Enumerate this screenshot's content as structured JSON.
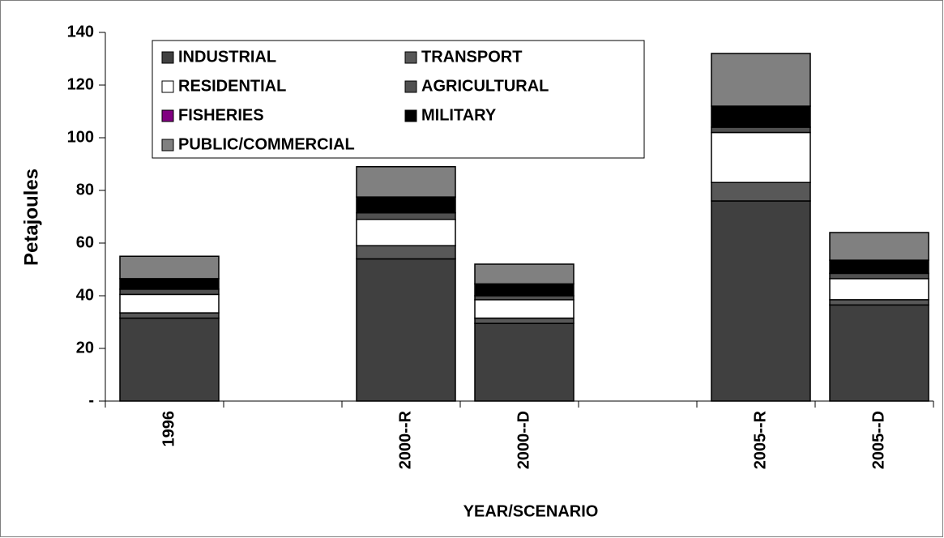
{
  "chart_data": {
    "type": "stacked_bar",
    "x_label": "YEAR/SCENARIO",
    "y_label": "Petajoules",
    "categories": [
      "1996",
      null,
      "2000--R",
      "2000--D",
      null,
      "2005--R",
      "2005--D"
    ],
    "series": [
      {
        "name": "INDUSTRIAL",
        "color": "#404040",
        "values": [
          31.5,
          null,
          54,
          29.5,
          null,
          76,
          36.5
        ]
      },
      {
        "name": "TRANSPORT",
        "color": "#585858",
        "values": [
          2,
          null,
          5,
          2,
          null,
          7,
          2
        ]
      },
      {
        "name": "RESIDENTIAL",
        "color": "#ffffff",
        "values": [
          7,
          null,
          10,
          7,
          null,
          19,
          8
        ]
      },
      {
        "name": "AGRICULTURAL",
        "color": "#505050",
        "values": [
          2,
          null,
          2.5,
          1.5,
          null,
          2,
          2
        ]
      },
      {
        "name": "FISHERIES",
        "color": "#800080",
        "values": [
          0,
          null,
          0,
          0,
          null,
          0,
          0
        ]
      },
      {
        "name": "MILITARY",
        "color": "#000000",
        "values": [
          4,
          null,
          6,
          4.5,
          null,
          8,
          5
        ]
      },
      {
        "name": "PUBLIC/COMMERCIAL",
        "color": "#808080",
        "values": [
          8.5,
          null,
          11.5,
          7.5,
          null,
          20,
          10.5
        ]
      }
    ],
    "ylim": [
      0,
      140
    ],
    "yticks": [
      {
        "value": 0,
        "label": "-"
      },
      20,
      40,
      60,
      80,
      100,
      120,
      140
    ],
    "grid": false,
    "legend": "top-left"
  }
}
